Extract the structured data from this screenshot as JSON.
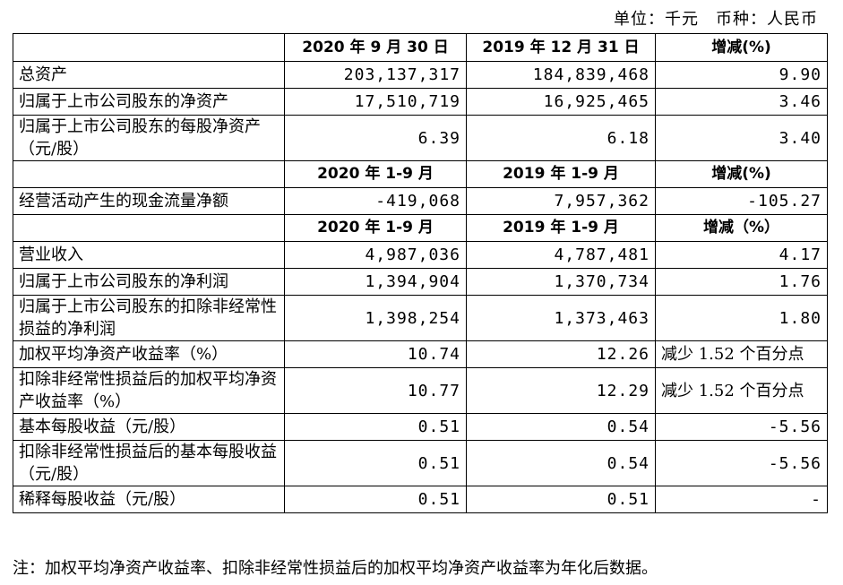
{
  "unit_line": "单位：千元　币种：人民币",
  "sections": [
    {
      "headers": [
        "",
        "2020 年 9 月 30 日",
        "2019 年 12 月 31 日",
        "增减(%)"
      ],
      "rows": [
        {
          "label": "总资产",
          "a": "203,137,317",
          "b": "184,839,468",
          "c": "9.90"
        },
        {
          "label": "归属于上市公司股东的净资产",
          "a": "17,510,719",
          "b": "16,925,465",
          "c": "3.46"
        },
        {
          "label": "归属于上市公司股东的每股净资产（元/股）",
          "a": "6.39",
          "b": "6.18",
          "c": "3.40"
        }
      ]
    },
    {
      "headers": [
        "",
        "2020 年 1-9 月",
        "2019 年 1-9 月",
        "增减(%)"
      ],
      "rows": [
        {
          "label": "经营活动产生的现金流量净额",
          "a": "-419,068",
          "b": "7,957,362",
          "c": "-105.27"
        }
      ]
    },
    {
      "headers": [
        "",
        "2020 年 1-9 月",
        "2019 年 1-9 月",
        "增减（%）"
      ],
      "rows": [
        {
          "label": "营业收入",
          "a": "4,987,036",
          "b": "4,787,481",
          "c": "4.17"
        },
        {
          "label": "归属于上市公司股东的净利润",
          "a": "1,394,904",
          "b": "1,370,734",
          "c": "1.76"
        },
        {
          "label": "归属于上市公司股东的扣除非经常性损益的净利润",
          "a": "1,398,254",
          "b": "1,373,463",
          "c": "1.80"
        },
        {
          "label": "加权平均净资产收益率（%）",
          "a": "10.74",
          "b": "12.26",
          "c": "减少 1.52 个百分点"
        },
        {
          "label": "扣除非经常性损益后的加权平均净资产收益率（%）",
          "a": "10.77",
          "b": "12.29",
          "c": "减少 1.52 个百分点"
        },
        {
          "label": "基本每股收益（元/股）",
          "a": "0.51",
          "b": "0.54",
          "c": "-5.56"
        },
        {
          "label": "扣除非经常性损益后的基本每股收益（元/股）",
          "a": "0.51",
          "b": "0.54",
          "c": "-5.56"
        },
        {
          "label": "稀释每股收益（元/股）",
          "a": "0.51",
          "b": "0.51",
          "c": "-"
        }
      ]
    }
  ],
  "note": "注：加权平均净资产收益率、扣除非经常性损益后的加权平均净资产收益率为年化后数据。"
}
